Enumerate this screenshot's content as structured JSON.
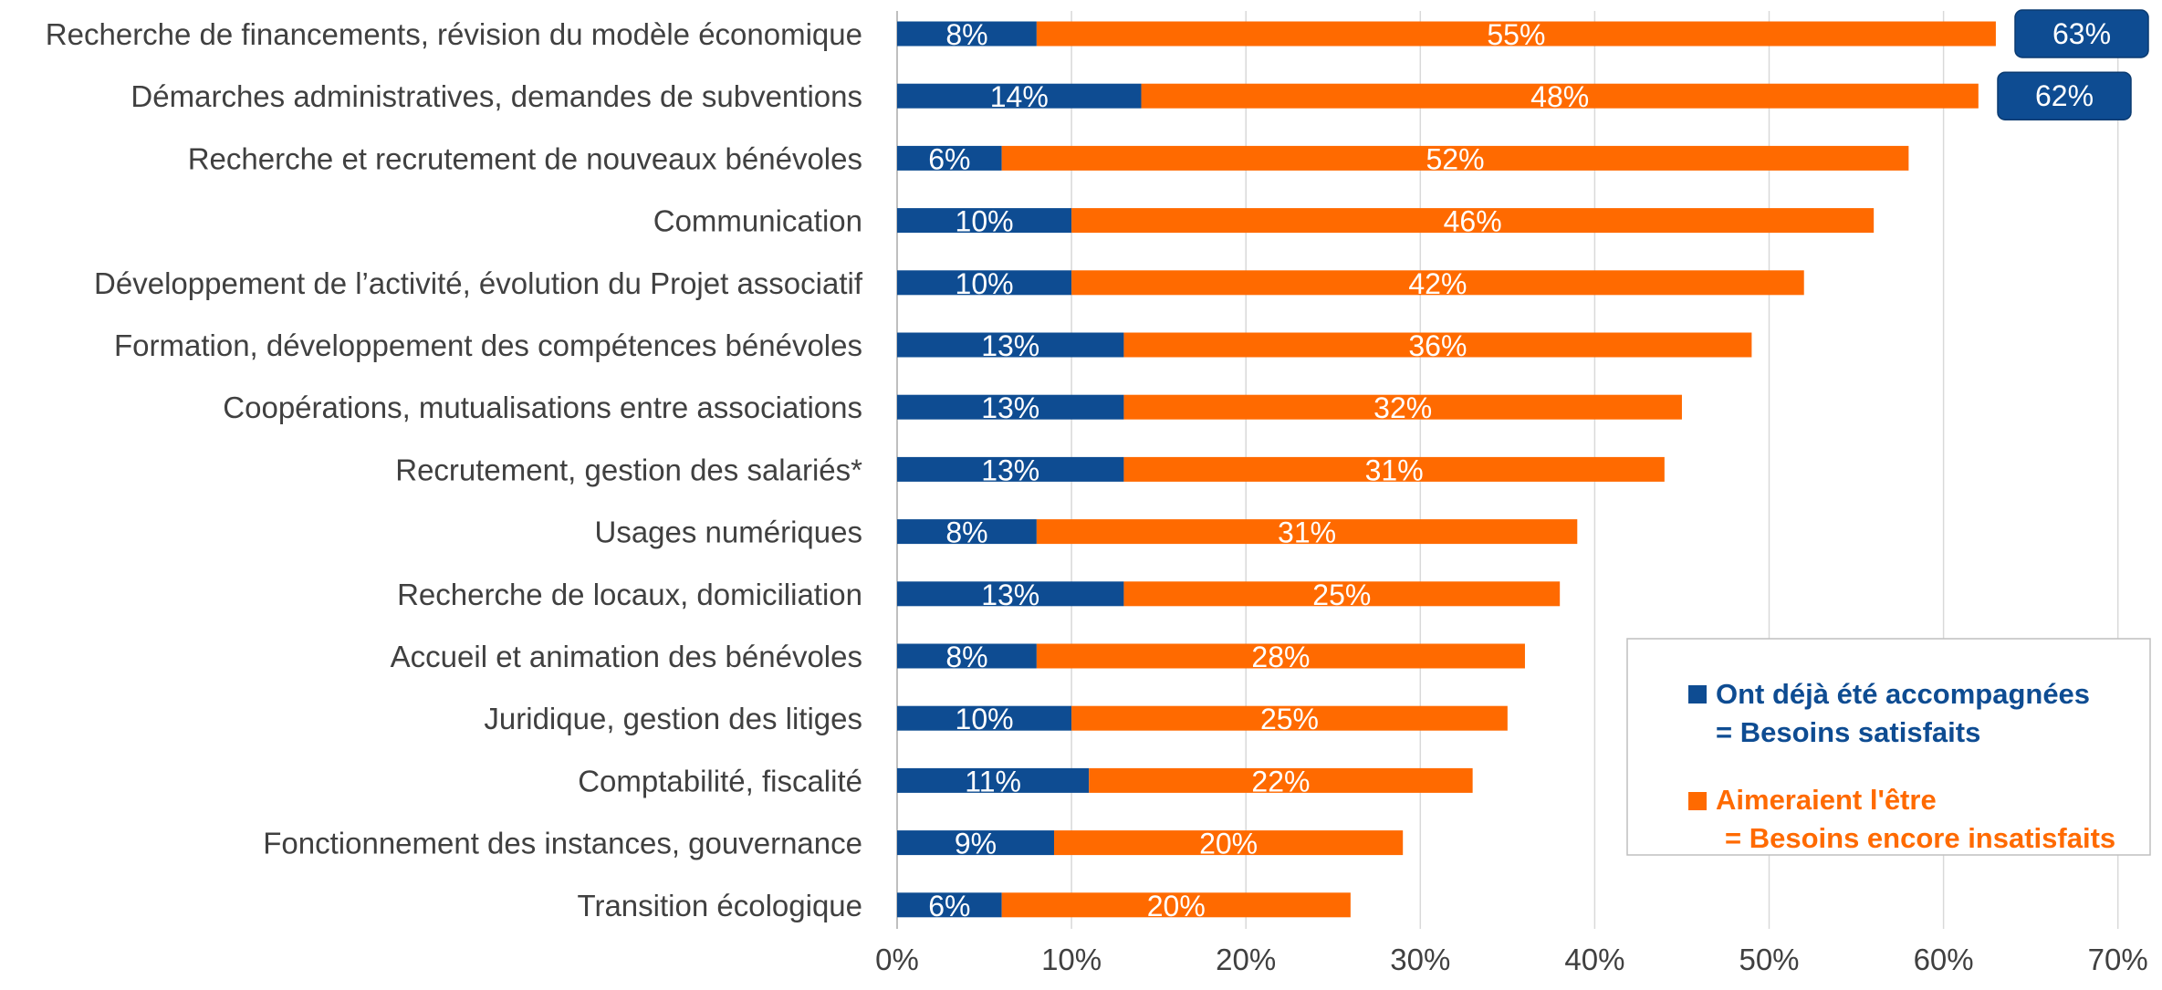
{
  "chart_data": {
    "type": "bar",
    "orientation": "horizontal",
    "stacked": true,
    "categories": [
      "Recherche de financements, révision du modèle économique",
      "Démarches administratives, demandes de subventions",
      "Recherche et recrutement de nouveaux bénévoles",
      "Communication",
      "Développement de l’activité, évolution du Projet associatif",
      "Formation, développement des compétences bénévoles",
      "Coopérations, mutualisations entre associations",
      "Recrutement, gestion des salariés*",
      "Usages numériques",
      "Recherche de locaux, domiciliation",
      "Accueil et animation des bénévoles",
      "Juridique, gestion des litiges",
      "Comptabilité, fiscalité",
      "Fonctionnement des instances, gouvernance",
      "Transition écologique"
    ],
    "series": [
      {
        "name": "Ont déjà été accompagnées = Besoins satisfaits",
        "legend_line1": "Ont déjà été accompagnées",
        "legend_line2": "= Besoins satisfaits",
        "color": "#0E4C92",
        "values": [
          8,
          14,
          6,
          10,
          10,
          13,
          13,
          13,
          8,
          13,
          8,
          10,
          11,
          9,
          6
        ]
      },
      {
        "name": "Aimeraient l'être = Besoins encore insatisfaits",
        "legend_line1": "Aimeraient l'être",
        "legend_line2": "= Besoins encore insatisfaits",
        "color": "#FF6A00",
        "values": [
          55,
          48,
          52,
          46,
          42,
          36,
          32,
          31,
          31,
          25,
          28,
          25,
          22,
          20,
          20
        ]
      }
    ],
    "callouts": [
      {
        "category_index": 0,
        "label": "63%"
      },
      {
        "category_index": 1,
        "label": "62%"
      }
    ],
    "x_ticks": [
      "0%",
      "10%",
      "20%",
      "30%",
      "40%",
      "50%",
      "60%",
      "70%"
    ],
    "xlim": [
      0,
      70
    ],
    "title": "",
    "xlabel": "",
    "ylabel": "",
    "grid": "vertical",
    "legend_position": "bottom-right",
    "callout_color": "#0E4C92"
  }
}
